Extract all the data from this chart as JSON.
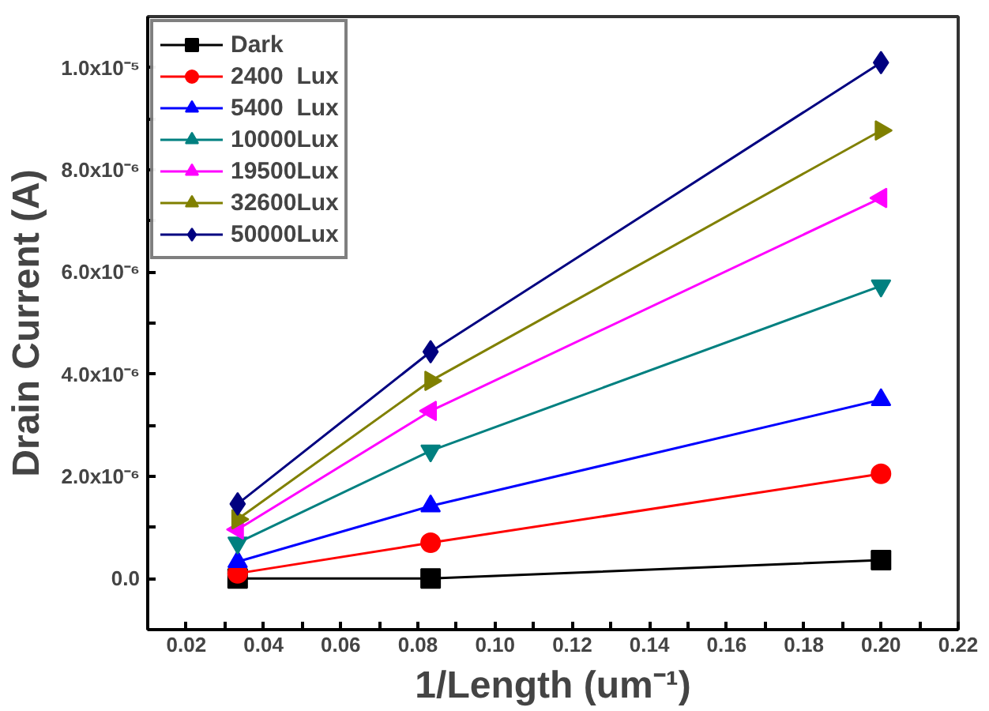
{
  "chart_data": {
    "type": "line",
    "xlabel": "1/Length (um⁻¹)",
    "ylabel": "Drain Current (A)",
    "x": [
      0.0333,
      0.0833,
      0.2
    ],
    "series": [
      {
        "name": "Dark",
        "color": "#000000",
        "marker": "square",
        "values": [
          0,
          0,
          3.6e-07
        ]
      },
      {
        "name": "2400  Lux",
        "color": "#ff0000",
        "marker": "circle",
        "values": [
          1e-07,
          7e-07,
          2.05e-06
        ]
      },
      {
        "name": "5400  Lux",
        "color": "#0000ff",
        "marker": "triangle",
        "values": [
          3.3e-07,
          1.42e-06,
          3.5e-06
        ]
      },
      {
        "name": "10000Lux",
        "color": "#008080",
        "marker": "triangle",
        "values": [
          7e-07,
          2.5e-06,
          5.73e-06
        ]
      },
      {
        "name": "19500Lux",
        "color": "#ff00ff",
        "marker": "triangle",
        "values": [
          9.6e-07,
          3.28e-06,
          7.45e-06
        ]
      },
      {
        "name": "32600Lux",
        "color": "#808000",
        "marker": "triangle",
        "values": [
          1.16e-06,
          3.87e-06,
          8.77e-06
        ]
      },
      {
        "name": "50000Lux",
        "color": "#000080",
        "marker": "diamond",
        "values": [
          1.46e-06,
          4.44e-06,
          1.01e-05
        ]
      }
    ],
    "xlim": [
      0.01,
      0.22
    ],
    "xticks": [
      {
        "value": 0.01,
        "label": null
      },
      0.02,
      {
        "value": 0.03,
        "label": null
      },
      0.04,
      {
        "value": 0.05,
        "label": null
      },
      0.06,
      {
        "value": 0.07,
        "label": null
      },
      0.08,
      {
        "value": 0.09,
        "label": null
      },
      {
        "value": 0.1,
        "label": "0.10"
      },
      {
        "value": 0.11,
        "label": null
      },
      0.12,
      {
        "value": 0.13,
        "label": null
      },
      0.14,
      {
        "value": 0.15,
        "label": null
      },
      0.16,
      {
        "value": 0.17,
        "label": null
      },
      0.18,
      {
        "value": 0.19,
        "label": null
      },
      {
        "value": 0.2,
        "label": "0.20"
      },
      {
        "value": 0.21,
        "label": null
      },
      0.22
    ],
    "ylim": [
      -1e-06,
      1.1e-05
    ],
    "yticks": [
      {
        "value": -1e-06,
        "label": null
      },
      {
        "value": 0,
        "label": "0.0"
      },
      {
        "value": 1e-06,
        "label": null
      },
      {
        "value": 2e-06,
        "label": "2.0x10⁻⁶"
      },
      {
        "value": 3e-06,
        "label": null
      },
      {
        "value": 4e-06,
        "label": "4.0x10⁻⁶"
      },
      {
        "value": 5e-06,
        "label": null
      },
      {
        "value": 6e-06,
        "label": "6.0x10⁻⁶"
      },
      {
        "value": 7e-06,
        "label": null
      },
      {
        "value": 8e-06,
        "label": "8.0x10⁻⁶"
      },
      {
        "value": 9e-06,
        "label": null
      },
      {
        "value": 1e-05,
        "label": "1.0x10⁻⁵"
      }
    ],
    "grid": false,
    "legend": "top left",
    "line_style": "solid"
  }
}
